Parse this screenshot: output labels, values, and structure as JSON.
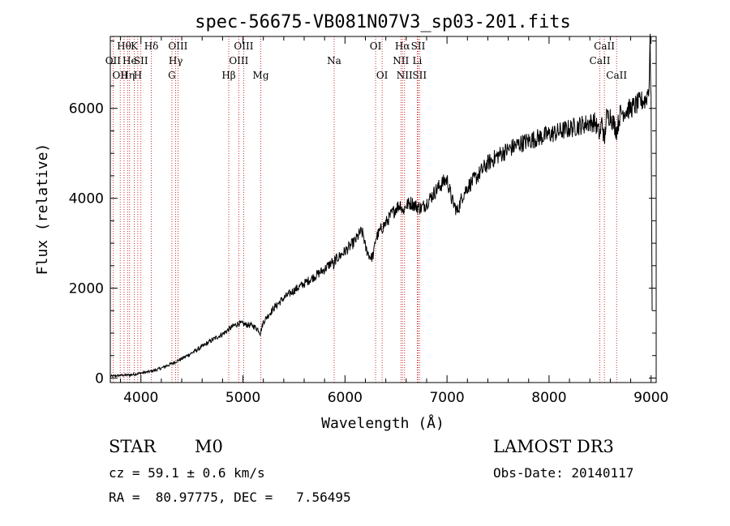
{
  "chart_data": {
    "type": "line",
    "title": "spec-56675-VB081N07V3_sp03-201.fits",
    "xlabel": "Wavelength (Å)",
    "ylabel": "Flux (relative)",
    "xlim": [
      3700,
      9050
    ],
    "ylim": [
      -100,
      7600
    ],
    "xticks": [
      4000,
      5000,
      6000,
      7000,
      8000,
      9000
    ],
    "xtick_labels": [
      "4000",
      "5000",
      "6000",
      "7000",
      "8000",
      "9000"
    ],
    "yticks": [
      0,
      2000,
      4000,
      6000
    ],
    "ytick_labels": [
      "0",
      "2000",
      "4000",
      "6000"
    ],
    "series": [
      {
        "name": "spectrum",
        "points": [
          [
            3700,
            40
          ],
          [
            3800,
            60
          ],
          [
            3900,
            70
          ],
          [
            4000,
            110
          ],
          [
            4100,
            150
          ],
          [
            4200,
            220
          ],
          [
            4300,
            320
          ],
          [
            4400,
            430
          ],
          [
            4500,
            560
          ],
          [
            4600,
            700
          ],
          [
            4700,
            850
          ],
          [
            4800,
            980
          ],
          [
            4860,
            1080
          ],
          [
            4900,
            1150
          ],
          [
            4960,
            1220
          ],
          [
            5000,
            1200
          ],
          [
            5100,
            1160
          ],
          [
            5150,
            1080
          ],
          [
            5170,
            1000
          ],
          [
            5200,
            1250
          ],
          [
            5300,
            1550
          ],
          [
            5400,
            1780
          ],
          [
            5500,
            1950
          ],
          [
            5600,
            2100
          ],
          [
            5700,
            2260
          ],
          [
            5800,
            2420
          ],
          [
            5880,
            2600
          ],
          [
            5893,
            2400
          ],
          [
            5900,
            2620
          ],
          [
            6000,
            2820
          ],
          [
            6100,
            3050
          ],
          [
            6150,
            3250
          ],
          [
            6180,
            3200
          ],
          [
            6200,
            2900
          ],
          [
            6240,
            2720
          ],
          [
            6260,
            2680
          ],
          [
            6280,
            2750
          ],
          [
            6300,
            3100
          ],
          [
            6350,
            3300
          ],
          [
            6400,
            3450
          ],
          [
            6450,
            3620
          ],
          [
            6500,
            3780
          ],
          [
            6550,
            3880
          ],
          [
            6563,
            3700
          ],
          [
            6600,
            3850
          ],
          [
            6650,
            3900
          ],
          [
            6700,
            3820
          ],
          [
            6750,
            3780
          ],
          [
            6800,
            3900
          ],
          [
            6850,
            4050
          ],
          [
            6900,
            4200
          ],
          [
            6950,
            4330
          ],
          [
            7000,
            4420
          ],
          [
            7050,
            3950
          ],
          [
            7100,
            3700
          ],
          [
            7150,
            4050
          ],
          [
            7200,
            4250
          ],
          [
            7300,
            4500
          ],
          [
            7400,
            4780
          ],
          [
            7500,
            4950
          ],
          [
            7600,
            5080
          ],
          [
            7700,
            5200
          ],
          [
            7800,
            5280
          ],
          [
            7900,
            5350
          ],
          [
            8000,
            5420
          ],
          [
            8100,
            5480
          ],
          [
            8200,
            5550
          ],
          [
            8300,
            5620
          ],
          [
            8400,
            5680
          ],
          [
            8450,
            5700
          ],
          [
            8498,
            5400
          ],
          [
            8520,
            5750
          ],
          [
            8542,
            5200
          ],
          [
            8560,
            5800
          ],
          [
            8600,
            5850
          ],
          [
            8662,
            5500
          ],
          [
            8700,
            5900
          ],
          [
            8800,
            6000
          ],
          [
            8900,
            6150
          ],
          [
            8950,
            6200
          ],
          [
            8980,
            6500
          ],
          [
            8990,
            7400
          ],
          [
            9000,
            6200
          ],
          [
            9010,
            1500
          ]
        ]
      }
    ],
    "lines": [
      {
        "w": 3727,
        "label": "OII",
        "row": 1
      },
      {
        "w": 3797,
        "label": "OII",
        "row": 2
      },
      {
        "w": 3835,
        "label": "Hθ",
        "row": 0
      },
      {
        "w": 3869,
        "label": "Hη",
        "row": 2
      },
      {
        "w": 3889,
        "label": "He",
        "row": 1
      },
      {
        "w": 3934,
        "label": "K",
        "row": 0
      },
      {
        "w": 3969,
        "label": "H",
        "row": 2
      },
      {
        "w": 4000,
        "label": "SII",
        "row": 1
      },
      {
        "w": 4102,
        "label": "Hδ",
        "row": 0
      },
      {
        "w": 4304,
        "label": "G",
        "row": 2
      },
      {
        "w": 4341,
        "label": "Hγ",
        "row": 1
      },
      {
        "w": 4363,
        "label": "OIII",
        "row": 0
      },
      {
        "w": 4861,
        "label": "Hβ",
        "row": 2
      },
      {
        "w": 4959,
        "label": "OIII",
        "row": 1
      },
      {
        "w": 5007,
        "label": "OIII",
        "row": 0
      },
      {
        "w": 5175,
        "label": "Mg",
        "row": 2
      },
      {
        "w": 5894,
        "label": "Na",
        "row": 1
      },
      {
        "w": 6300,
        "label": "OI",
        "row": 0
      },
      {
        "w": 6364,
        "label": "OI",
        "row": 2
      },
      {
        "w": 6548,
        "label": "NII",
        "row": 1
      },
      {
        "w": 6563,
        "label": "Hα",
        "row": 0
      },
      {
        "w": 6584,
        "label": "NII",
        "row": 2
      },
      {
        "w": 6708,
        "label": "Li",
        "row": 1
      },
      {
        "w": 6717,
        "label": "SII",
        "row": 0
      },
      {
        "w": 6731,
        "label": "SII",
        "row": 2
      },
      {
        "w": 8498,
        "label": "CaII",
        "row": 1
      },
      {
        "w": 8542,
        "label": "CaII",
        "row": 0
      },
      {
        "w": 8662,
        "label": "CaII",
        "row": 2
      }
    ]
  },
  "info": {
    "class_label": "STAR",
    "subclass": "M0",
    "survey": "LAMOST DR3",
    "cz": "cz = 59.1 ± 0.6 km/s",
    "obs_date": "Obs-Date: 20140117",
    "coords": "RA =  80.97775, DEC =   7.56495"
  }
}
